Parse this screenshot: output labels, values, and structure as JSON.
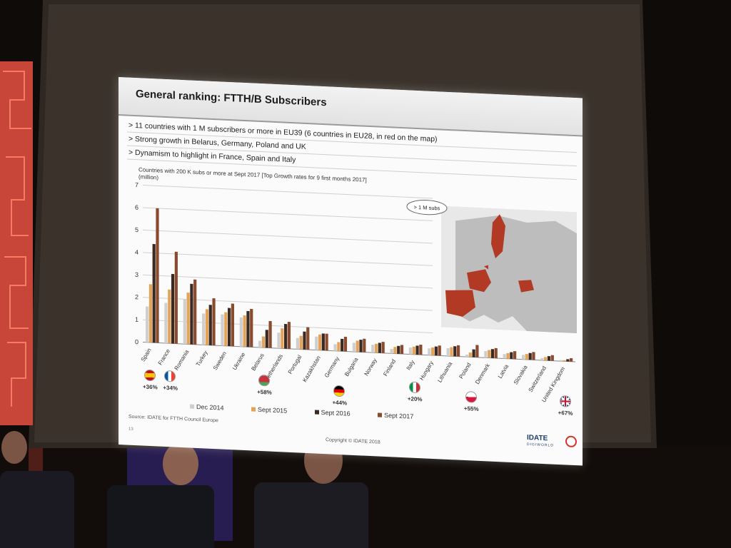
{
  "slide": {
    "title": "General ranking: FTTH/B Subscribers",
    "bullets": [
      "> 11 countries with 1 M subscribers or more in EU39 (6 countries in EU28, in red on the map)",
      "> Strong growth in Belarus, Germany, Poland and UK",
      "> Dynamism to highlight in France, Spain and Italy"
    ],
    "map_label": "> 1 M subs",
    "source": "Source: IDATE for FTTH Council Europe",
    "page_number": "13",
    "copyright": "Copyright © IDATE 2018",
    "logo": "IDATE",
    "logo_sub": "DIGIWORLD"
  },
  "chart_data": {
    "type": "bar",
    "title": "Countries with 200 K subs or more at Sept 2017 [Top Growth rates for 9 first months 2017]",
    "ylabel": "(million)",
    "ylim": [
      0,
      7
    ],
    "yticks": [
      0,
      1,
      2,
      3,
      4,
      5,
      6,
      7
    ],
    "grid": true,
    "legend_position": "bottom",
    "categories": [
      "Spain",
      "France",
      "Romania",
      "Turkey",
      "Sweden",
      "Ukraine",
      "Belarus",
      "Netherlands",
      "Portugal",
      "Kazakhstan",
      "Germany",
      "Bulgaria",
      "Norway",
      "Finland",
      "Italy",
      "Hungary",
      "Lithuania",
      "Poland",
      "Denmark",
      "Latvia",
      "Slovakia",
      "Switzerland",
      "United Kingdom"
    ],
    "series": [
      {
        "name": "Dec 2014",
        "color": "#cfcfcf",
        "values": [
          1.6,
          1.8,
          2.0,
          1.4,
          1.4,
          1.3,
          0.3,
          0.7,
          0.5,
          0.6,
          0.3,
          0.4,
          0.35,
          0.2,
          0.3,
          0.3,
          0.35,
          0.1,
          0.3,
          0.2,
          0.2,
          0.1,
          0.05
        ]
      },
      {
        "name": "Sept 2015",
        "color": "#e3a45a",
        "values": [
          2.6,
          2.4,
          2.3,
          1.6,
          1.5,
          1.4,
          0.5,
          0.9,
          0.6,
          0.7,
          0.4,
          0.5,
          0.4,
          0.3,
          0.35,
          0.35,
          0.4,
          0.2,
          0.35,
          0.25,
          0.25,
          0.15,
          0.05
        ]
      },
      {
        "name": "Sept 2016",
        "color": "#3a2a22",
        "values": [
          4.4,
          3.1,
          2.7,
          1.8,
          1.7,
          1.6,
          0.8,
          1.1,
          0.8,
          0.75,
          0.55,
          0.55,
          0.45,
          0.35,
          0.4,
          0.4,
          0.45,
          0.35,
          0.4,
          0.3,
          0.3,
          0.2,
          0.1
        ]
      },
      {
        "name": "Sept 2017",
        "color": "#8a4a2e",
        "values": [
          6.0,
          4.1,
          2.9,
          2.1,
          1.9,
          1.7,
          1.2,
          1.2,
          1.0,
          0.75,
          0.65,
          0.6,
          0.5,
          0.4,
          0.45,
          0.45,
          0.5,
          0.55,
          0.45,
          0.35,
          0.35,
          0.25,
          0.15
        ]
      }
    ],
    "growth_labels": [
      {
        "country": "Spain",
        "flag": "flag-spain-icon",
        "text": "+36%"
      },
      {
        "country": "France",
        "flag": "flag-france-icon",
        "text": "+34%"
      },
      {
        "country": "Belarus",
        "flag": "flag-belarus-icon",
        "text": "+58%"
      },
      {
        "country": "Germany",
        "flag": "flag-germany-icon",
        "text": "+44%"
      },
      {
        "country": "Italy",
        "flag": "flag-italy-icon",
        "text": "+20%"
      },
      {
        "country": "Poland",
        "flag": "flag-poland-icon",
        "text": "+55%"
      },
      {
        "country": "United Kingdom",
        "flag": "flag-uk-icon",
        "text": "+67%"
      }
    ]
  },
  "colors": {
    "highlight": "#b23a24",
    "map_base": "#bcbcbc"
  }
}
